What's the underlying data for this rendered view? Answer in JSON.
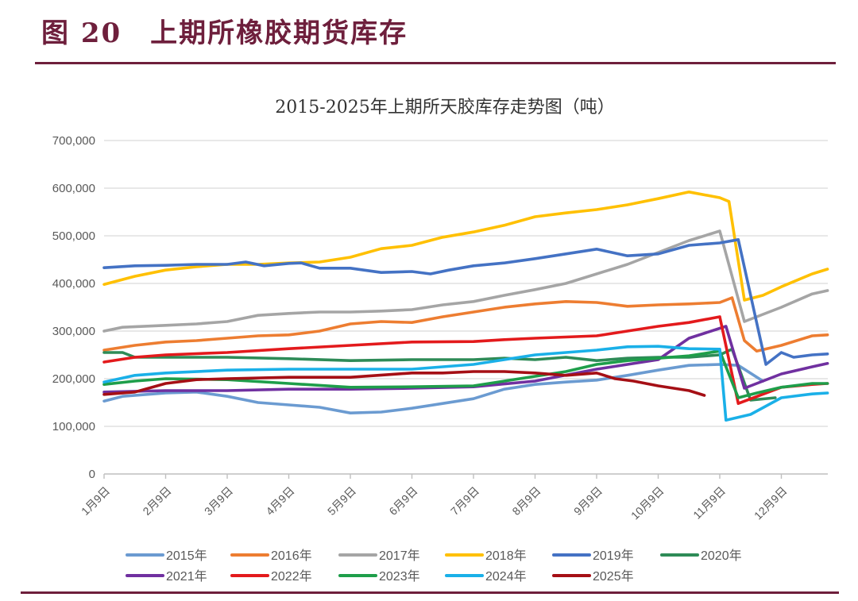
{
  "figure": {
    "number": "图 20",
    "caption": "上期所橡胶期货库存"
  },
  "chart_data": {
    "type": "line",
    "title": "2015-2025年上期所天胶库存走势图（吨）",
    "xlabel": "",
    "ylabel": "",
    "ylim": [
      0,
      700000
    ],
    "yticks": [
      0,
      100000,
      200000,
      300000,
      400000,
      500000,
      600000,
      700000
    ],
    "ytick_labels": [
      "0",
      "100,000",
      "200,000",
      "300,000",
      "400,000",
      "500,000",
      "600,000",
      "700,000"
    ],
    "categories": [
      "1月9日",
      "2月9日",
      "3月9日",
      "4月9日",
      "5月9日",
      "6月9日",
      "7月9日",
      "8月9日",
      "9月9日",
      "10月9日",
      "11月9日",
      "12月9日"
    ],
    "x_unit": "month index (0 = 1月9日, 11 = 12月9日)",
    "xlim": [
      0,
      11.75
    ],
    "grid": true,
    "legend_position": "bottom",
    "series": [
      {
        "name": "2015年",
        "color": "#6b9bd1",
        "points": [
          [
            0,
            153000
          ],
          [
            0.3,
            163000
          ],
          [
            1,
            170000
          ],
          [
            1.5,
            172000
          ],
          [
            2,
            163000
          ],
          [
            2.5,
            150000
          ],
          [
            3,
            145000
          ],
          [
            3.5,
            140000
          ],
          [
            4,
            128000
          ],
          [
            4.5,
            130000
          ],
          [
            5,
            138000
          ],
          [
            5.5,
            148000
          ],
          [
            6,
            158000
          ],
          [
            6.5,
            178000
          ],
          [
            7,
            188000
          ],
          [
            7.5,
            193000
          ],
          [
            8,
            197000
          ],
          [
            8.5,
            207000
          ],
          [
            9,
            218000
          ],
          [
            9.5,
            228000
          ],
          [
            10,
            230000
          ],
          [
            10.3,
            228000
          ],
          [
            10.7,
            195000
          ]
        ]
      },
      {
        "name": "2016年",
        "color": "#ed7d31",
        "points": [
          [
            0,
            260000
          ],
          [
            0.5,
            270000
          ],
          [
            1,
            277000
          ],
          [
            1.5,
            280000
          ],
          [
            2,
            285000
          ],
          [
            2.5,
            290000
          ],
          [
            3,
            292000
          ],
          [
            3.5,
            300000
          ],
          [
            4,
            315000
          ],
          [
            4.5,
            320000
          ],
          [
            5,
            318000
          ],
          [
            5.5,
            330000
          ],
          [
            6,
            340000
          ],
          [
            6.5,
            350000
          ],
          [
            7,
            357000
          ],
          [
            7.5,
            362000
          ],
          [
            8,
            360000
          ],
          [
            8.5,
            352000
          ],
          [
            9,
            355000
          ],
          [
            9.5,
            357000
          ],
          [
            10,
            360000
          ],
          [
            10.2,
            370000
          ],
          [
            10.4,
            280000
          ],
          [
            10.6,
            258000
          ],
          [
            11,
            270000
          ],
          [
            11.5,
            290000
          ],
          [
            11.75,
            292000
          ]
        ]
      },
      {
        "name": "2017年",
        "color": "#a5a5a5",
        "points": [
          [
            0,
            300000
          ],
          [
            0.3,
            308000
          ],
          [
            1,
            312000
          ],
          [
            1.5,
            315000
          ],
          [
            2,
            320000
          ],
          [
            2.5,
            333000
          ],
          [
            3,
            337000
          ],
          [
            3.5,
            340000
          ],
          [
            4,
            340000
          ],
          [
            4.5,
            342000
          ],
          [
            5,
            345000
          ],
          [
            5.5,
            355000
          ],
          [
            6,
            362000
          ],
          [
            6.5,
            375000
          ],
          [
            7,
            387000
          ],
          [
            7.5,
            400000
          ],
          [
            8,
            420000
          ],
          [
            8.5,
            440000
          ],
          [
            9,
            465000
          ],
          [
            9.5,
            490000
          ],
          [
            10,
            510000
          ],
          [
            10.4,
            320000
          ],
          [
            11,
            350000
          ],
          [
            11.5,
            378000
          ],
          [
            11.75,
            385000
          ]
        ]
      },
      {
        "name": "2018年",
        "color": "#ffc000",
        "points": [
          [
            0,
            398000
          ],
          [
            0.5,
            415000
          ],
          [
            1,
            428000
          ],
          [
            1.5,
            435000
          ],
          [
            2,
            440000
          ],
          [
            2.5,
            440000
          ],
          [
            3,
            443000
          ],
          [
            3.5,
            445000
          ],
          [
            4,
            455000
          ],
          [
            4.5,
            473000
          ],
          [
            5,
            480000
          ],
          [
            5.5,
            497000
          ],
          [
            6,
            508000
          ],
          [
            6.5,
            522000
          ],
          [
            7,
            540000
          ],
          [
            7.5,
            548000
          ],
          [
            8,
            555000
          ],
          [
            8.5,
            565000
          ],
          [
            9,
            578000
          ],
          [
            9.5,
            592000
          ],
          [
            10,
            580000
          ],
          [
            10.15,
            572000
          ],
          [
            10.4,
            365000
          ],
          [
            10.7,
            375000
          ],
          [
            11,
            393000
          ],
          [
            11.5,
            420000
          ],
          [
            11.75,
            430000
          ]
        ]
      },
      {
        "name": "2019年",
        "color": "#4472c4",
        "points": [
          [
            0,
            433000
          ],
          [
            0.5,
            437000
          ],
          [
            1,
            438000
          ],
          [
            1.5,
            440000
          ],
          [
            2,
            440000
          ],
          [
            2.3,
            445000
          ],
          [
            2.6,
            437000
          ],
          [
            3,
            442000
          ],
          [
            3.2,
            443000
          ],
          [
            3.5,
            432000
          ],
          [
            4,
            432000
          ],
          [
            4.5,
            423000
          ],
          [
            5,
            425000
          ],
          [
            5.3,
            420000
          ],
          [
            5.6,
            428000
          ],
          [
            6,
            437000
          ],
          [
            6.5,
            443000
          ],
          [
            7,
            452000
          ],
          [
            7.5,
            462000
          ],
          [
            8,
            472000
          ],
          [
            8.5,
            458000
          ],
          [
            9,
            462000
          ],
          [
            9.5,
            480000
          ],
          [
            10,
            485000
          ],
          [
            10.3,
            492000
          ],
          [
            10.75,
            230000
          ],
          [
            11,
            255000
          ],
          [
            11.2,
            245000
          ],
          [
            11.5,
            250000
          ],
          [
            11.75,
            252000
          ]
        ]
      },
      {
        "name": "2020年",
        "color": "#2e8b57",
        "points": [
          [
            0,
            255000
          ],
          [
            0.3,
            255000
          ],
          [
            0.5,
            245000
          ],
          [
            1,
            245000
          ],
          [
            2,
            245000
          ],
          [
            3,
            242000
          ],
          [
            4,
            238000
          ],
          [
            5,
            240000
          ],
          [
            6,
            240000
          ],
          [
            6.5,
            243000
          ],
          [
            7,
            240000
          ],
          [
            7.5,
            245000
          ],
          [
            8,
            238000
          ],
          [
            8.5,
            243000
          ],
          [
            9,
            245000
          ],
          [
            9.5,
            245000
          ],
          [
            10,
            250000
          ],
          [
            10.2,
            262000
          ],
          [
            10.5,
            155000
          ],
          [
            10.9,
            160000
          ]
        ]
      },
      {
        "name": "2021年",
        "color": "#7030a0",
        "points": [
          [
            0,
            172000
          ],
          [
            1,
            175000
          ],
          [
            2,
            175000
          ],
          [
            3,
            178000
          ],
          [
            4,
            178000
          ],
          [
            5,
            180000
          ],
          [
            6,
            183000
          ],
          [
            7,
            195000
          ],
          [
            8,
            220000
          ],
          [
            9,
            240000
          ],
          [
            9.5,
            285000
          ],
          [
            10.1,
            310000
          ],
          [
            10.4,
            180000
          ],
          [
            11,
            210000
          ],
          [
            11.5,
            225000
          ],
          [
            11.75,
            232000
          ]
        ]
      },
      {
        "name": "2022年",
        "color": "#e31a1c",
        "points": [
          [
            0,
            235000
          ],
          [
            0.5,
            245000
          ],
          [
            1,
            250000
          ],
          [
            2,
            255000
          ],
          [
            3,
            263000
          ],
          [
            4,
            270000
          ],
          [
            5,
            277000
          ],
          [
            6,
            278000
          ],
          [
            6.5,
            282000
          ],
          [
            7,
            285000
          ],
          [
            8,
            290000
          ],
          [
            8.5,
            300000
          ],
          [
            9,
            310000
          ],
          [
            9.5,
            318000
          ],
          [
            10,
            330000
          ],
          [
            10.3,
            148000
          ],
          [
            11,
            182000
          ],
          [
            11.5,
            188000
          ],
          [
            11.75,
            190000
          ]
        ]
      },
      {
        "name": "2023年",
        "color": "#1e9e4a",
        "points": [
          [
            0,
            188000
          ],
          [
            0.5,
            195000
          ],
          [
            1,
            200000
          ],
          [
            2,
            198000
          ],
          [
            3,
            190000
          ],
          [
            4,
            182000
          ],
          [
            5,
            183000
          ],
          [
            6,
            185000
          ],
          [
            6.5,
            195000
          ],
          [
            7,
            205000
          ],
          [
            7.5,
            215000
          ],
          [
            8,
            230000
          ],
          [
            8.5,
            238000
          ],
          [
            9,
            243000
          ],
          [
            9.5,
            248000
          ],
          [
            10,
            258000
          ],
          [
            10.3,
            160000
          ],
          [
            10.6,
            170000
          ],
          [
            11,
            182000
          ],
          [
            11.5,
            190000
          ],
          [
            11.75,
            190000
          ]
        ]
      },
      {
        "name": "2024年",
        "color": "#1ab0e8",
        "points": [
          [
            0,
            193000
          ],
          [
            0.5,
            207000
          ],
          [
            1,
            212000
          ],
          [
            2,
            218000
          ],
          [
            3,
            220000
          ],
          [
            4,
            220000
          ],
          [
            5,
            220000
          ],
          [
            6,
            230000
          ],
          [
            6.5,
            240000
          ],
          [
            7,
            250000
          ],
          [
            7.5,
            255000
          ],
          [
            8,
            260000
          ],
          [
            8.5,
            267000
          ],
          [
            9,
            268000
          ],
          [
            9.5,
            263000
          ],
          [
            10,
            262000
          ],
          [
            10.1,
            113000
          ],
          [
            10.5,
            125000
          ],
          [
            11,
            160000
          ],
          [
            11.5,
            168000
          ],
          [
            11.75,
            170000
          ]
        ]
      },
      {
        "name": "2025年",
        "color": "#a50f15",
        "points": [
          [
            0,
            167000
          ],
          [
            0.5,
            172000
          ],
          [
            1,
            190000
          ],
          [
            1.5,
            198000
          ],
          [
            2,
            200000
          ],
          [
            3,
            203000
          ],
          [
            4,
            203000
          ],
          [
            5,
            212000
          ],
          [
            5.5,
            212000
          ],
          [
            6,
            215000
          ],
          [
            6.5,
            215000
          ],
          [
            7,
            212000
          ],
          [
            7.5,
            207000
          ],
          [
            8,
            212000
          ],
          [
            8.3,
            200000
          ],
          [
            8.6,
            195000
          ],
          [
            9,
            185000
          ],
          [
            9.5,
            175000
          ],
          [
            9.75,
            165000
          ]
        ]
      }
    ]
  }
}
